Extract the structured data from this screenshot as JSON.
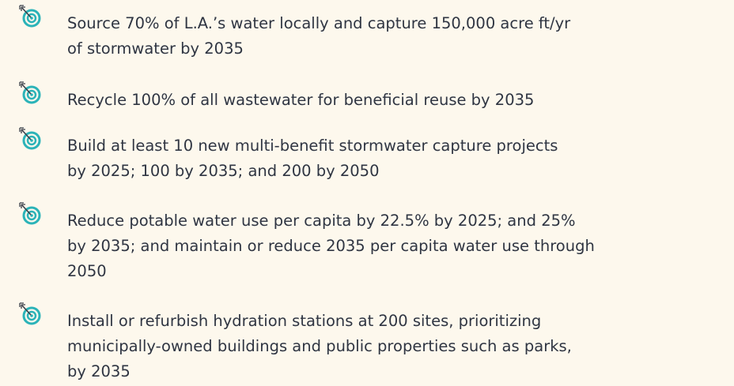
{
  "items": [
    {
      "lines": [
        "Source 70% of L.A.’s water locally and capture 150,000 acre ft/yr",
        "of stormwater by 2035"
      ]
    },
    {
      "lines": [
        "Recycle 100% of all wastewater for beneficial reuse by 2035"
      ]
    },
    {
      "lines": [
        "Build at least 10 new multi-benefit stormwater capture projects",
        "by 2025; 100 by 2035; and 200 by 2050"
      ]
    },
    {
      "lines": [
        "Reduce potable water use per capita by 22.5% by 2025; and 25%",
        "by 2035; and maintain or reduce 2035 per capita water use through",
        "2050"
      ]
    },
    {
      "lines": [
        "Install or refurbish hydration stations at 200 sites, prioritizing",
        "municipally-owned buildings and public properties such as parks,",
        "by 2035"
      ]
    }
  ]
}
